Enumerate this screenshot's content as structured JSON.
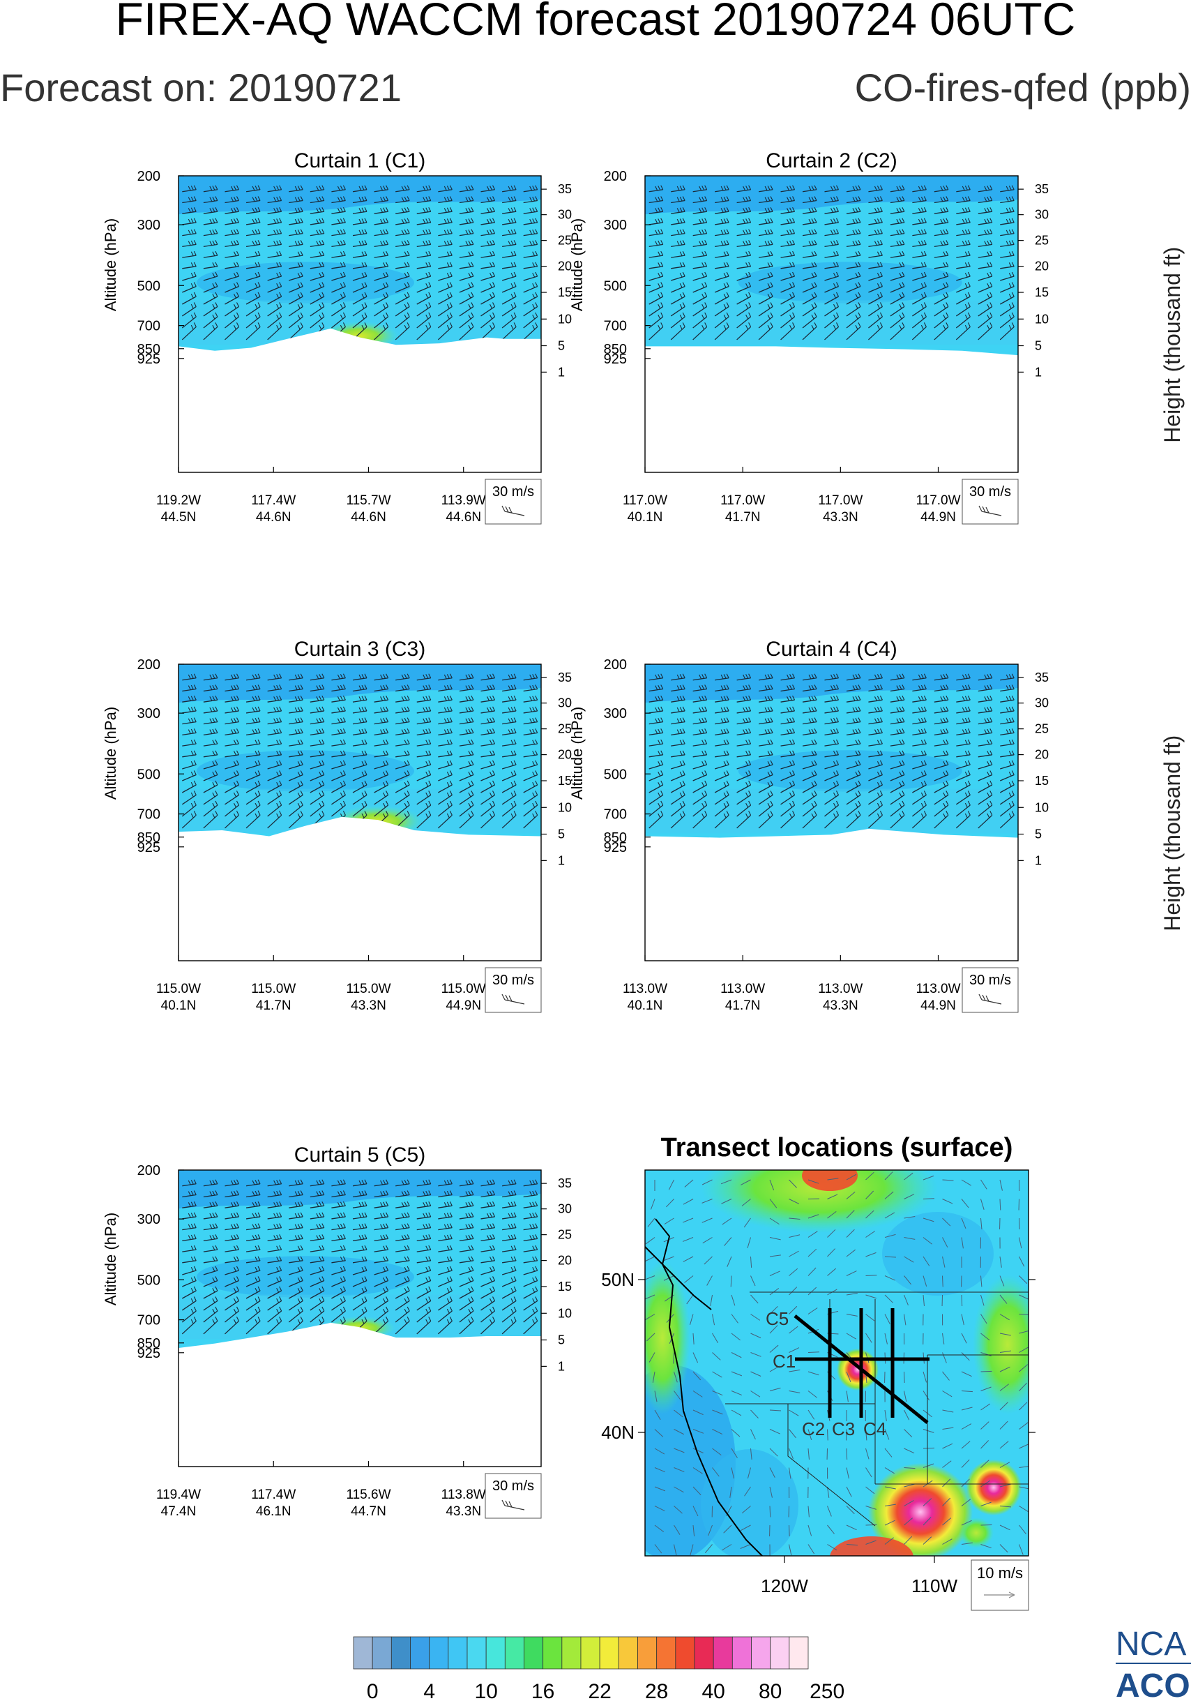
{
  "header": {
    "title": "FIREX-AQ WACCM forecast 20190724 06UTC",
    "forecast_on": "Forecast on: 20190721",
    "species": "CO-fires-qfed (ppb)"
  },
  "common": {
    "left_axis_label": "Altitude (hPa)",
    "right_axis_label": "Height (thousand ft)",
    "pressure_ticks": [
      "200",
      "300",
      "500",
      "700",
      "850",
      "925"
    ],
    "height_ticks": [
      "35",
      "30",
      "25",
      "20",
      "15",
      "10",
      "5",
      "1"
    ],
    "wind_ref_label": "30 m/s",
    "colors": {
      "background_field": "#3ed3f4",
      "upper_band": "#2aa6ee",
      "mid_band": "#30b6f0",
      "plume": "#8fe03c",
      "plume_core": "#d6e92e"
    }
  },
  "curtains": [
    {
      "title": "Curtain 1 (C1)",
      "ticks": [
        [
          "119.2W",
          "44.5N"
        ],
        [
          "117.4W",
          "44.6N"
        ],
        [
          "115.7W",
          "44.6N"
        ],
        [
          "113.9W",
          "44.6N"
        ]
      ]
    },
    {
      "title": "Curtain 2 (C2)",
      "ticks": [
        [
          "117.0W",
          "40.1N"
        ],
        [
          "117.0W",
          "41.7N"
        ],
        [
          "117.0W",
          "43.3N"
        ],
        [
          "117.0W",
          "44.9N"
        ]
      ]
    },
    {
      "title": "Curtain 3 (C3)",
      "ticks": [
        [
          "115.0W",
          "40.1N"
        ],
        [
          "115.0W",
          "41.7N"
        ],
        [
          "115.0W",
          "43.3N"
        ],
        [
          "115.0W",
          "44.9N"
        ]
      ]
    },
    {
      "title": "Curtain 4 (C4)",
      "ticks": [
        [
          "113.0W",
          "40.1N"
        ],
        [
          "113.0W",
          "41.7N"
        ],
        [
          "113.0W",
          "43.3N"
        ],
        [
          "113.0W",
          "44.9N"
        ]
      ]
    },
    {
      "title": "Curtain 5 (C5)",
      "ticks": [
        [
          "119.4W",
          "47.4N"
        ],
        [
          "117.4W",
          "46.1N"
        ],
        [
          "115.6W",
          "44.7N"
        ],
        [
          "113.8W",
          "43.3N"
        ]
      ]
    }
  ],
  "map": {
    "title": "Transect locations (surface)",
    "lat_labels": [
      "50N",
      "40N"
    ],
    "lon_labels": [
      "120W",
      "110W"
    ],
    "transect_labels": [
      "C5",
      "C1",
      "C2",
      "C3",
      "C4"
    ],
    "wind_ref_label": "10 m/s"
  },
  "colorbar": {
    "labels": [
      "0",
      "4",
      "10",
      "16",
      "22",
      "28",
      "40",
      "80",
      "250"
    ],
    "colors": [
      "#9fb7d6",
      "#7aa8d4",
      "#3f8fc9",
      "#3aa0e8",
      "#3ab4f2",
      "#40c6f4",
      "#4ad8f0",
      "#47e6dc",
      "#46e9a4",
      "#3fdb60",
      "#6be43e",
      "#a3ea3a",
      "#d2ee3a",
      "#f2ec3a",
      "#f8c83a",
      "#f89e3a",
      "#f57433",
      "#ef4b2e",
      "#e82a55",
      "#e83a9c",
      "#ef72d8",
      "#f6a6ec",
      "#fbd0f2",
      "#ffe8ee"
    ]
  },
  "logo": {
    "line1": "NCA",
    "line2": "ACO"
  }
}
